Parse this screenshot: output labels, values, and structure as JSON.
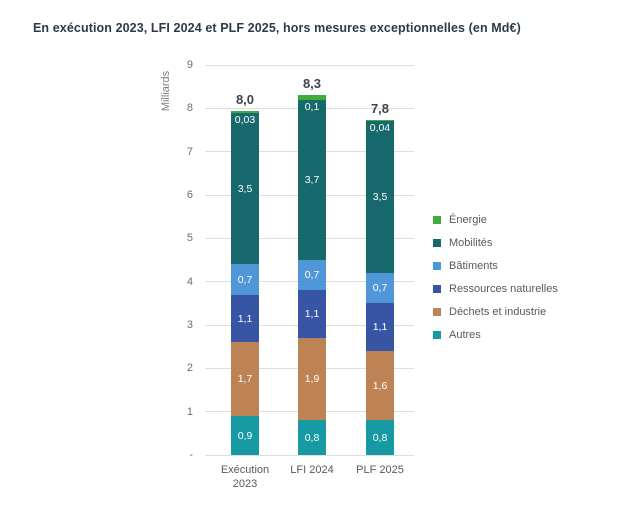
{
  "page": {
    "title": "En exécution 2023, LFI 2024 et PLF 2025, hors mesures exceptionnelles (en Md€)"
  },
  "chart_data": {
    "type": "bar",
    "stacked": true,
    "title": "En exécution 2023, LFI 2024 et PLF 2025, hors mesures exceptionnelles (en Md€)",
    "ylabel": "Milliards",
    "xlabel": "",
    "ylim": [
      0,
      9
    ],
    "grid": true,
    "legend_position": "right",
    "categories": [
      "Exécution\n2023",
      "LFI 2024",
      "PLF 2025"
    ],
    "y_ticks": [
      "-",
      "1",
      "2",
      "3",
      "4",
      "5",
      "6",
      "7",
      "8",
      "9"
    ],
    "series": [
      {
        "name": "Autres",
        "color": "#1699a2",
        "values": [
          0.9,
          0.8,
          0.8
        ],
        "labels": [
          "0,9",
          "0,8",
          "0,8"
        ]
      },
      {
        "name": "Déchets et industrie",
        "color": "#bd8355",
        "values": [
          1.7,
          1.9,
          1.6
        ],
        "labels": [
          "1,7",
          "1,9",
          "1,6"
        ]
      },
      {
        "name": "Ressources naturelles",
        "color": "#3754a5",
        "values": [
          1.1,
          1.1,
          1.1
        ],
        "labels": [
          "1,1",
          "1,1",
          "1,1"
        ]
      },
      {
        "name": "Bâtiments",
        "color": "#4f97d6",
        "values": [
          0.7,
          0.7,
          0.7
        ],
        "labels": [
          "0,7",
          "0,7",
          "0,7"
        ]
      },
      {
        "name": "Mobilités",
        "color": "#17696e",
        "values": [
          3.5,
          3.7,
          3.5
        ],
        "labels": [
          "3,5",
          "3,7",
          "3,5"
        ]
      },
      {
        "name": "Énergie",
        "color": "#3cae39",
        "values": [
          0.03,
          0.1,
          0.04
        ],
        "labels": [
          "0,03",
          "0,1",
          "0,04"
        ]
      }
    ],
    "totals": {
      "values": [
        8.0,
        8.3,
        7.8
      ],
      "labels": [
        "8,0",
        "8,3",
        "7,8"
      ]
    }
  }
}
